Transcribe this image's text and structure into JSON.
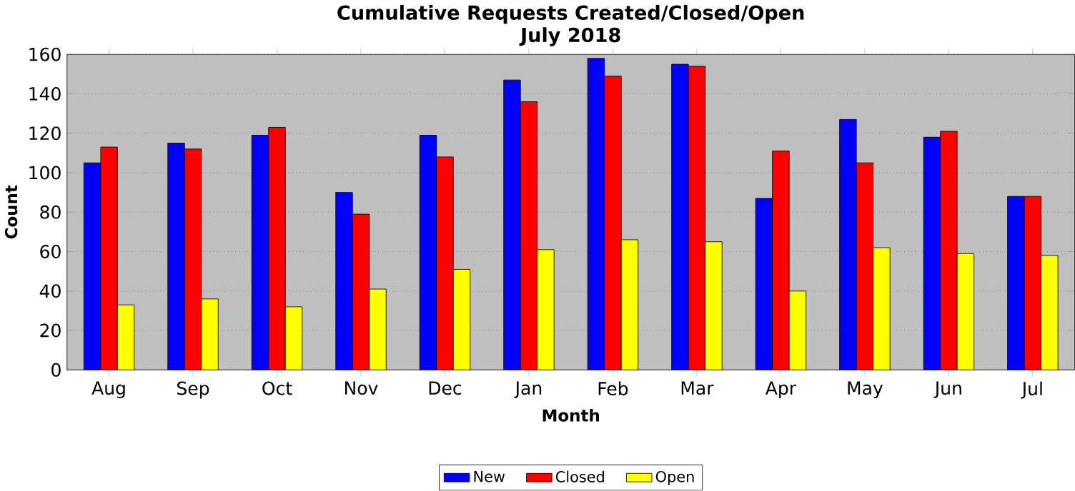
{
  "chart_data": {
    "type": "bar",
    "title": "Cumulative Requests Created/Closed/Open",
    "subtitle": "July 2018",
    "xlabel": "Month",
    "ylabel": "Count",
    "categories": [
      "Aug",
      "Sep",
      "Oct",
      "Nov",
      "Dec",
      "Jan",
      "Feb",
      "Mar",
      "Apr",
      "May",
      "Jun",
      "Jul"
    ],
    "series": [
      {
        "name": "New",
        "color": "#0000ff",
        "values": [
          105,
          115,
          119,
          90,
          119,
          147,
          158,
          155,
          87,
          127,
          118,
          88
        ]
      },
      {
        "name": "Closed",
        "color": "#ff0000",
        "values": [
          113,
          112,
          123,
          79,
          108,
          136,
          149,
          154,
          111,
          105,
          121,
          88
        ]
      },
      {
        "name": "Open",
        "color": "#ffff00",
        "values": [
          33,
          36,
          32,
          41,
          51,
          61,
          66,
          65,
          40,
          62,
          59,
          58
        ]
      }
    ],
    "ylim": [
      0,
      160
    ],
    "yticks": [
      0,
      20,
      40,
      60,
      80,
      100,
      120,
      140,
      160
    ],
    "grid": "y",
    "legend": "bottom"
  }
}
